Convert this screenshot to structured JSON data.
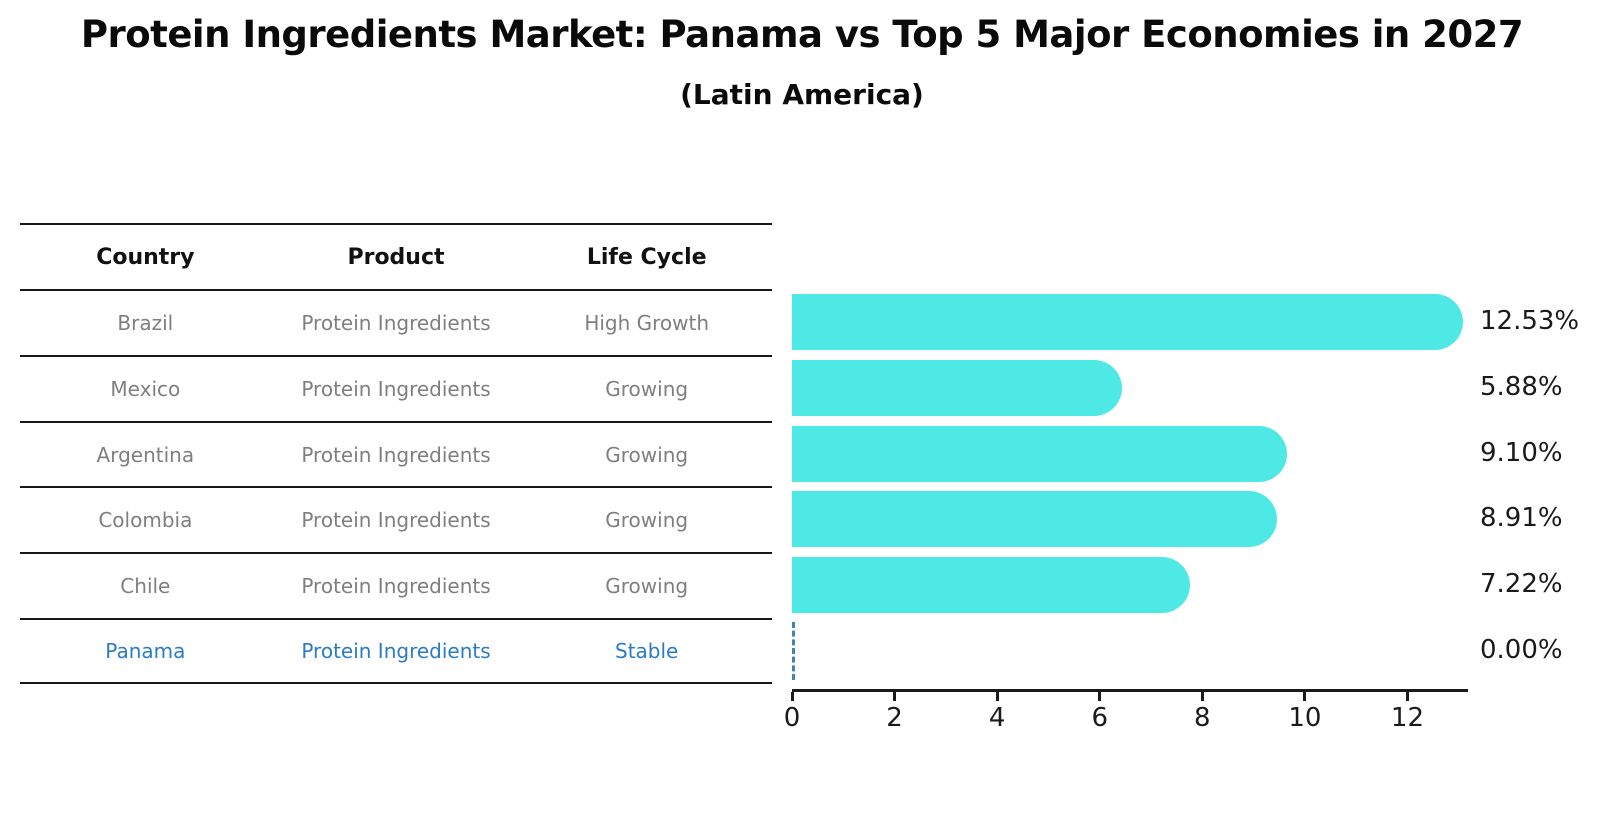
{
  "title": "Protein Ingredients Market: Panama vs Top 5 Major Economies in 2027",
  "subtitle": "(Latin America)",
  "table": {
    "headers": [
      "Country",
      "Product",
      "Life Cycle"
    ],
    "rows": [
      {
        "country": "Brazil",
        "product": "Protein Ingredients",
        "life_cycle": "High Growth",
        "highlight": false
      },
      {
        "country": "Mexico",
        "product": "Protein Ingredients",
        "life_cycle": "Growing",
        "highlight": false
      },
      {
        "country": "Argentina",
        "product": "Protein Ingredients",
        "life_cycle": "Growing",
        "highlight": false
      },
      {
        "country": "Colombia",
        "product": "Protein Ingredients",
        "life_cycle": "Growing",
        "highlight": false
      },
      {
        "country": "Chile",
        "product": "Protein Ingredients",
        "life_cycle": "Growing",
        "highlight": false
      },
      {
        "country": "Panama",
        "product": "Protein Ingredients",
        "life_cycle": "Stable",
        "highlight": true
      }
    ]
  },
  "chart_data": {
    "type": "bar",
    "orientation": "horizontal",
    "categories": [
      "Brazil",
      "Mexico",
      "Argentina",
      "Colombia",
      "Chile",
      "Panama"
    ],
    "values": [
      12.53,
      5.88,
      9.1,
      8.91,
      7.22,
      0.0
    ],
    "value_labels": [
      "12.53%",
      "5.88%",
      "9.10%",
      "8.91%",
      "7.22%",
      "0.00%"
    ],
    "x_ticks": [
      "0",
      "2",
      "4",
      "6",
      "8",
      "10",
      "12"
    ],
    "x_tick_values": [
      0,
      2,
      4,
      6,
      8,
      10,
      12
    ],
    "xlim": [
      0,
      13.16
    ],
    "grid": false,
    "legend": "none",
    "bar_color": "#4FE9E5",
    "zero_marker_color": "#4682B4",
    "highlight_text_color": "#2b7cc4"
  }
}
